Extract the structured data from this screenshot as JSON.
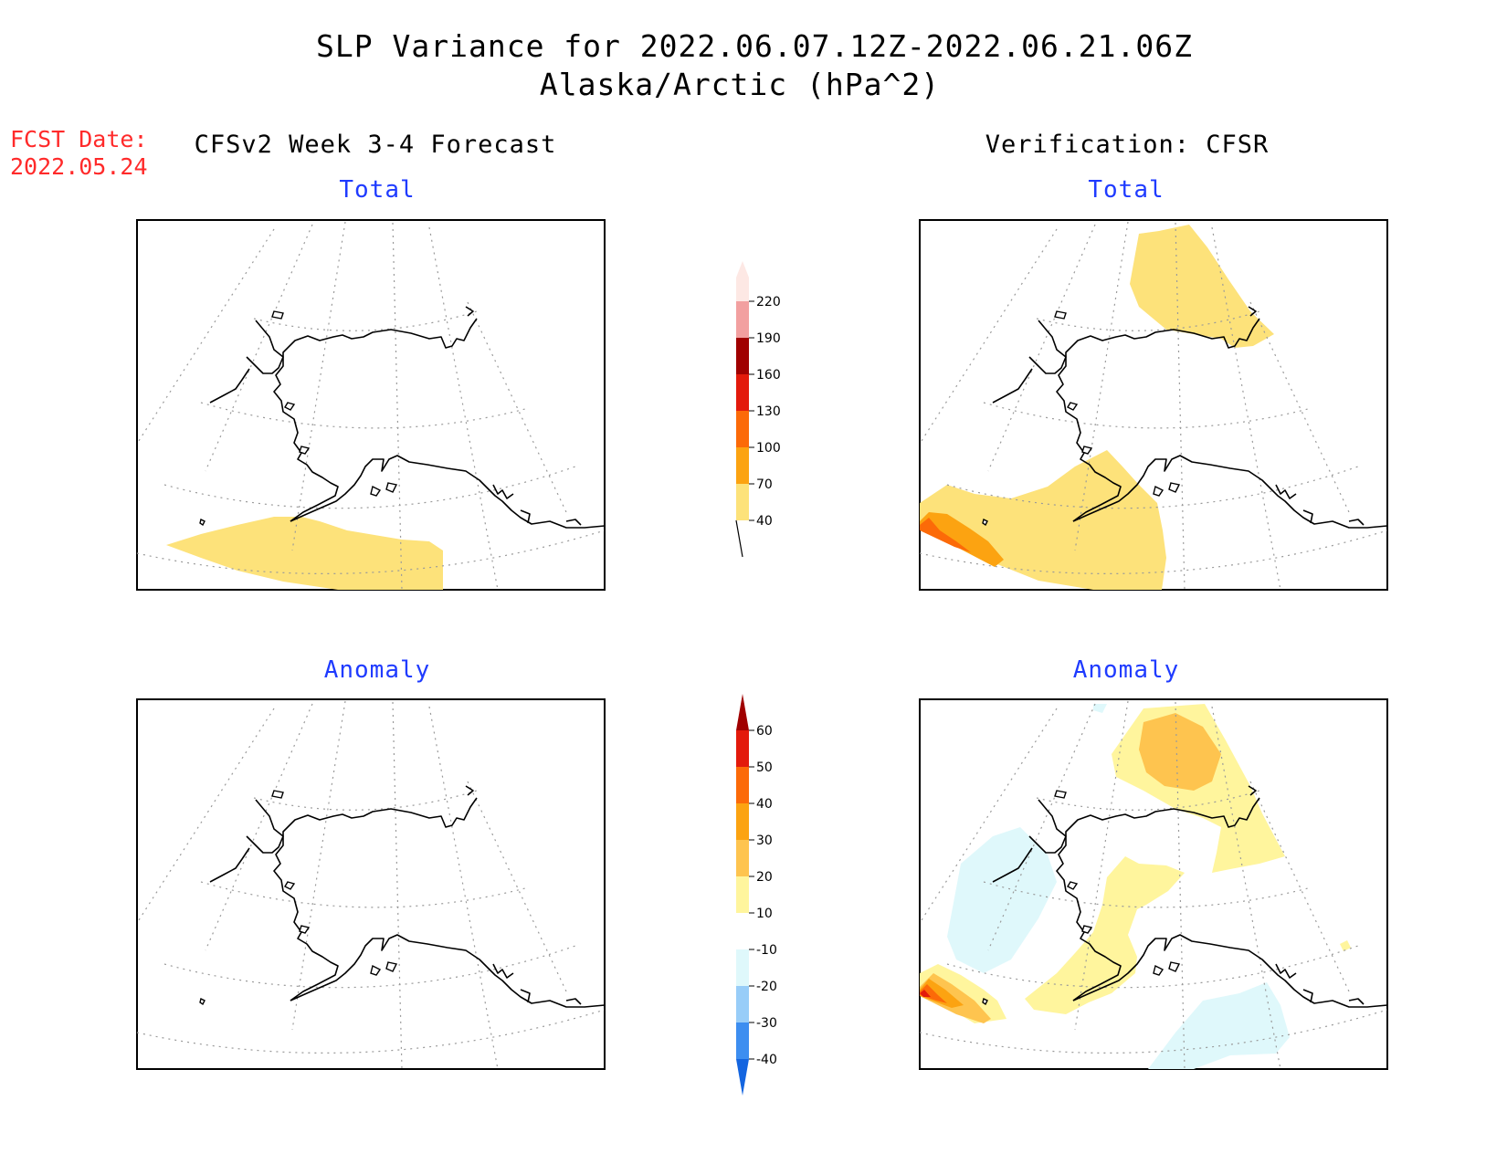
{
  "title": {
    "line1": "SLP Variance for 2022.06.07.12Z-2022.06.21.06Z",
    "line2": "Alaska/Arctic (hPa^2)"
  },
  "fcst": {
    "label": "FCST Date:",
    "date": "2022.05.24"
  },
  "headers": {
    "left": "CFSv2 Week 3-4 Forecast",
    "right": "Verification: CFSR"
  },
  "panels": {
    "forecast_total": {
      "label": "Total"
    },
    "verification_total": {
      "label": "Total"
    },
    "forecast_anomaly": {
      "label": "Anomaly"
    },
    "verification_anomaly": {
      "label": "Anomaly"
    }
  },
  "colorbars": {
    "total": {
      "ticks": [
        "40",
        "70",
        "100",
        "130",
        "160",
        "190",
        "220"
      ],
      "colors": [
        "#fde27a",
        "#fca311",
        "#fc6a08",
        "#e31a0b",
        "#a00000",
        "#f2a0a0",
        "#fde8e4"
      ]
    },
    "anomaly": {
      "ticks": [
        "-40",
        "-30",
        "-20",
        "-10",
        "10",
        "20",
        "30",
        "40",
        "50",
        "60"
      ],
      "colors": [
        "#1465e0",
        "#3d8ef0",
        "#98cdf8",
        "#dff8fb",
        "#ffffff",
        "#fff59d",
        "#fec44f",
        "#fca311",
        "#fc6a08",
        "#e31a0b",
        "#a00000"
      ]
    }
  },
  "shading": {
    "light_yellow": "#fde27a",
    "anomaly_yellow": "#fff59d",
    "anomaly_orange": "#fec44f",
    "light_cyan": "#dff8fb"
  }
}
